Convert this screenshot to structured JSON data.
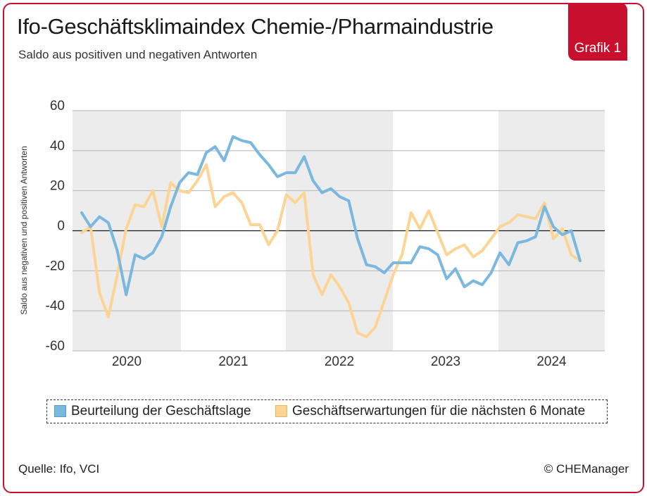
{
  "header": {
    "title": "Ifo-Geschäftsklimaindex Chemie-/Pharmaindustrie",
    "subtitle": "Saldo aus positiven und negativen Antworten",
    "badge": "Grafik 1"
  },
  "footer": {
    "source": "Quelle: Ifo, VCI",
    "copyright": "© CHEManager"
  },
  "colors": {
    "accent": "#c8102e",
    "series_lage": "#7ab8e0",
    "series_erwartung": "#fcd596",
    "band": "#ececec"
  },
  "chart_data": {
    "type": "line",
    "ylabel": "Saldo aus negativen und positiven Antworten",
    "ylim": [
      -60,
      60
    ],
    "yticks": [
      "60",
      "40",
      "20",
      "0",
      "-20",
      "-40",
      "-60"
    ],
    "ytick_values": [
      60,
      40,
      20,
      0,
      -20,
      -40,
      -60
    ],
    "years": [
      "2020",
      "2021",
      "2022",
      "2023",
      "2024"
    ],
    "grid": true,
    "legend_position": "bottom",
    "series": [
      {
        "name": "Beurteilung der Geschäftslage",
        "color": "#7ab8e0",
        "values": [
          9,
          2,
          7,
          4,
          -10,
          -32,
          -12,
          -14,
          -11,
          -3,
          12,
          24,
          29,
          28,
          39,
          42,
          35,
          47,
          45,
          44,
          38,
          33,
          27,
          29,
          29,
          37,
          25,
          19,
          21,
          17,
          15,
          -4,
          -17,
          -18,
          -21,
          -16,
          -16,
          -16,
          -8,
          -9,
          -12,
          -24,
          -19,
          -28,
          -25,
          -27,
          -21,
          -11,
          -17,
          -6,
          -5,
          -3,
          12,
          2,
          -2,
          0,
          -15
        ]
      },
      {
        "name": "Geschäftserwartungen für die nächsten 6 Monate",
        "color": "#fcd596",
        "values": [
          -1,
          2,
          -31,
          -43,
          -22,
          1,
          13,
          12,
          20,
          2,
          24,
          20,
          19,
          25,
          33,
          12,
          17,
          19,
          14,
          3,
          3,
          -7,
          0,
          18,
          14,
          19,
          -22,
          -32,
          -22,
          -28,
          -36,
          -51,
          -53,
          -48,
          -35,
          -22,
          -12,
          9,
          1,
          10,
          -1,
          -12,
          -9,
          -7,
          -13,
          -10,
          -4,
          2,
          4,
          8,
          7,
          6,
          14,
          -4,
          1,
          -12,
          -15
        ]
      }
    ]
  }
}
